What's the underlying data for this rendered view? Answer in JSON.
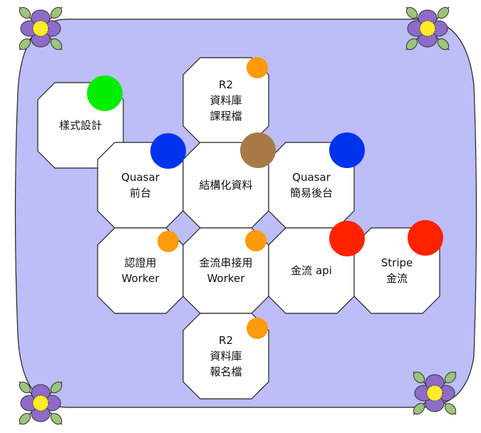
{
  "colors": {
    "background_panel": "#bdbdf7",
    "node_fill": "#ffffff",
    "node_stroke": "#222222",
    "green": "#00ee00",
    "blue": "#0033ee",
    "brown": "#a87a45",
    "red": "#ff2200",
    "orange": "#ff9a0a",
    "flower_petal": "#8e6bc9",
    "flower_center": "#ffeb2a",
    "flower_leaf": "#9cc47c"
  },
  "nodes": [
    {
      "id": "style-design",
      "lines": [
        "樣式設計"
      ],
      "badge": "green"
    },
    {
      "id": "r2-course-db",
      "lines": [
        "R2",
        "資料庫",
        "課程檔"
      ],
      "badge": "orange"
    },
    {
      "id": "quasar-frontend",
      "lines": [
        "Quasar",
        "前台"
      ],
      "badge": "blue"
    },
    {
      "id": "structured-data",
      "lines": [
        "結構化資料"
      ],
      "badge": "brown"
    },
    {
      "id": "quasar-admin",
      "lines": [
        "Quasar",
        "簡易後台"
      ],
      "badge": "blue"
    },
    {
      "id": "auth-worker",
      "lines": [
        "認證用",
        "Worker"
      ],
      "badge": "orange"
    },
    {
      "id": "payment-worker",
      "lines": [
        "金流串接用",
        "Worker"
      ],
      "badge": "orange"
    },
    {
      "id": "payment-api",
      "lines": [
        "金流 api"
      ],
      "badge": "red"
    },
    {
      "id": "stripe-payment",
      "lines": [
        "Stripe",
        "金流"
      ],
      "badge": "red"
    },
    {
      "id": "r2-signup-db",
      "lines": [
        "R2",
        "資料庫",
        "報名檔"
      ],
      "badge": "orange"
    }
  ],
  "flowers": [
    "top-left",
    "top-right",
    "bottom-left",
    "bottom-right"
  ]
}
